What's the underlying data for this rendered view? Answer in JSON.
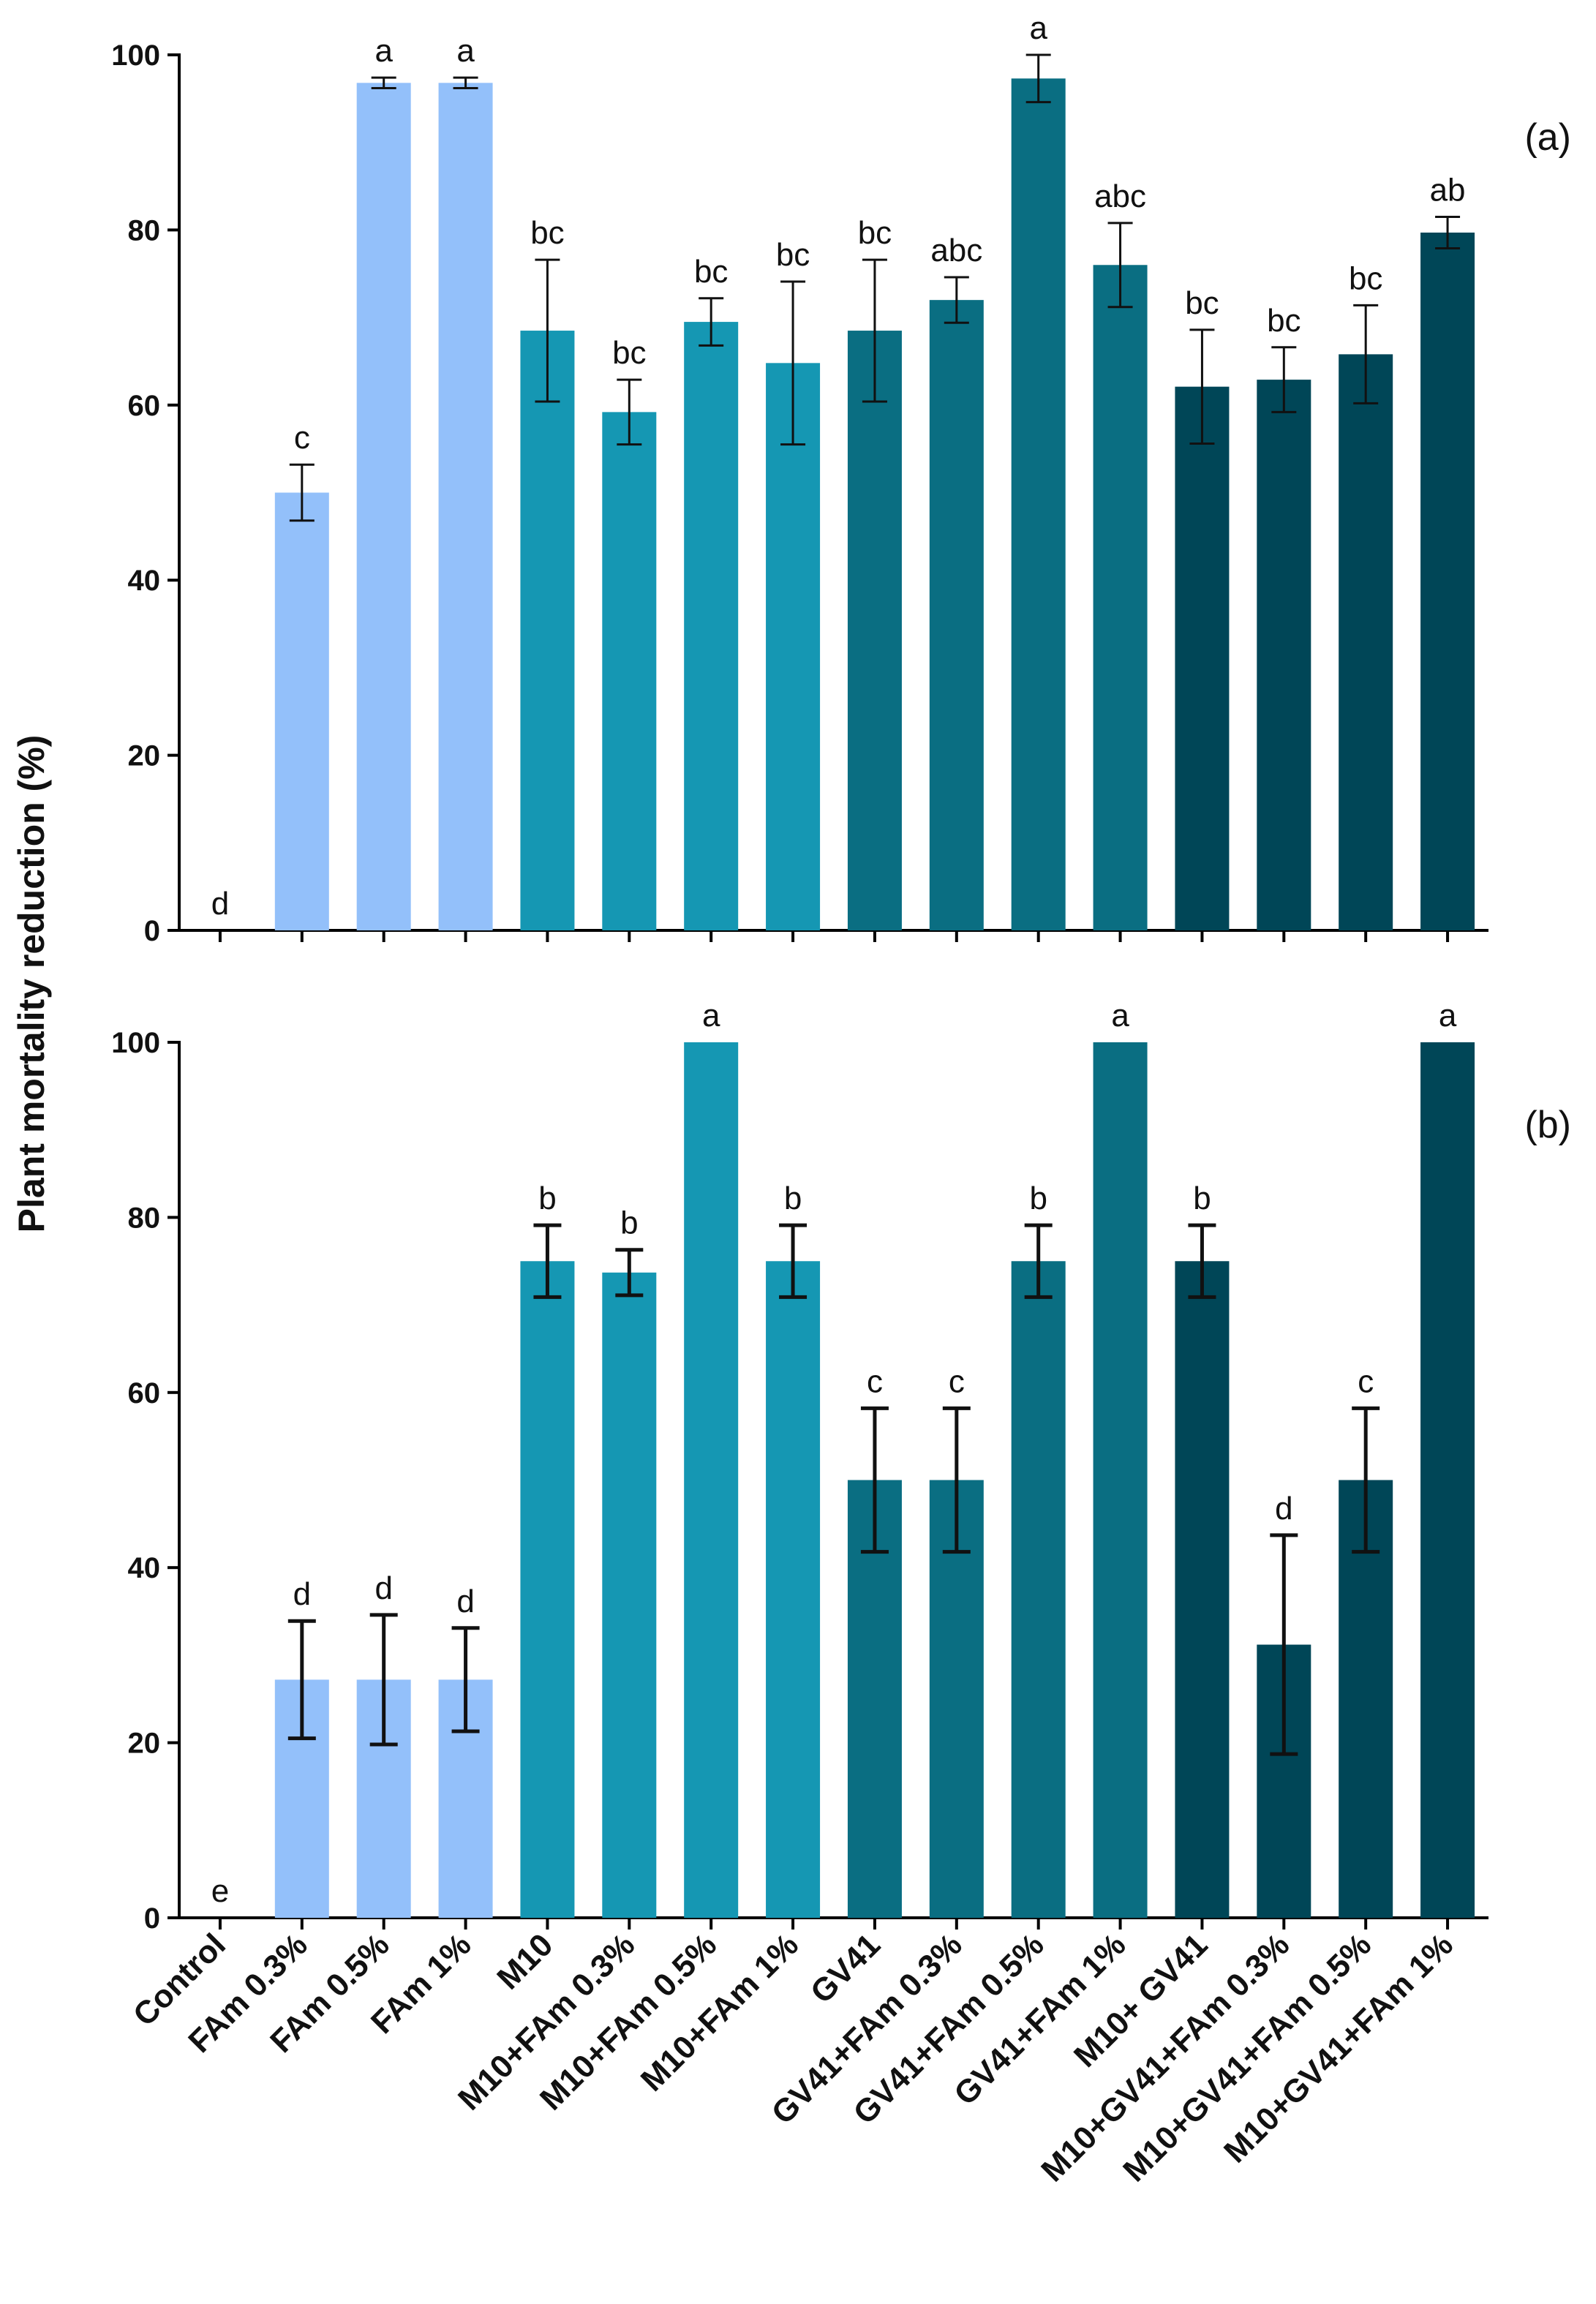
{
  "chart_data": {
    "type": "bar",
    "ylabel": "Plant mortality reduction (%)",
    "ylim": [
      0,
      100
    ],
    "yticks": [
      "0",
      "20",
      "40",
      "60",
      "80",
      "100"
    ],
    "categories": [
      "Control",
      "FAm 0.3%",
      "FAm 0.5%",
      "FAm 1%",
      "M10",
      "M10+FAm 0.3%",
      "M10+FAm 0.5%",
      "M10+FAm 1%",
      "GV41",
      "GV41+FAm 0.3%",
      "GV41+FAm 0.5%",
      "GV41+FAm 1%",
      "M10+ GV41",
      "M10+GV41+FAm 0.3%",
      "M10+GV41+FAm 0.5%",
      "M10+GV41+FAm 1%"
    ],
    "bar_colors": [
      "#93c0fa",
      "#93c0fa",
      "#93c0fa",
      "#93c0fa",
      "#1597b3",
      "#1597b3",
      "#1597b3",
      "#1597b3",
      "#0a6e82",
      "#0a6e82",
      "#0a6e82",
      "#0a6e82",
      "#004657",
      "#004657",
      "#004657",
      "#004657"
    ],
    "panels": [
      {
        "label": "(a)",
        "values": [
          0,
          50,
          96.8,
          96.8,
          68.5,
          59.2,
          69.5,
          64.8,
          68.5,
          72,
          97.3,
          76,
          62.1,
          62.9,
          65.8,
          79.7
        ],
        "errors": [
          0,
          3.2,
          0.6,
          0.6,
          8.1,
          3.7,
          2.7,
          9.3,
          8.1,
          2.6,
          2.7,
          4.8,
          6.5,
          3.7,
          5.6,
          1.8
        ],
        "significance": [
          "d",
          "c",
          "a",
          "a",
          "bc",
          "bc",
          "bc",
          "bc",
          "bc",
          "abc",
          "a",
          "abc",
          "bc",
          "bc",
          "bc",
          "ab"
        ]
      },
      {
        "label": "(b)",
        "values": [
          0,
          27.2,
          27.2,
          27.2,
          75,
          73.7,
          100,
          75,
          50,
          50,
          75,
          100,
          75,
          31.2,
          50,
          100
        ],
        "errors": [
          0,
          6.7,
          7.4,
          5.9,
          4.1,
          2.6,
          0,
          4.1,
          8.2,
          8.2,
          4.1,
          0,
          4.1,
          12.5,
          8.2,
          0
        ],
        "significance": [
          "e",
          "d",
          "d",
          "d",
          "b",
          "b",
          "a",
          "b",
          "c",
          "c",
          "b",
          "a",
          "b",
          "d",
          "c",
          "a"
        ]
      }
    ]
  }
}
